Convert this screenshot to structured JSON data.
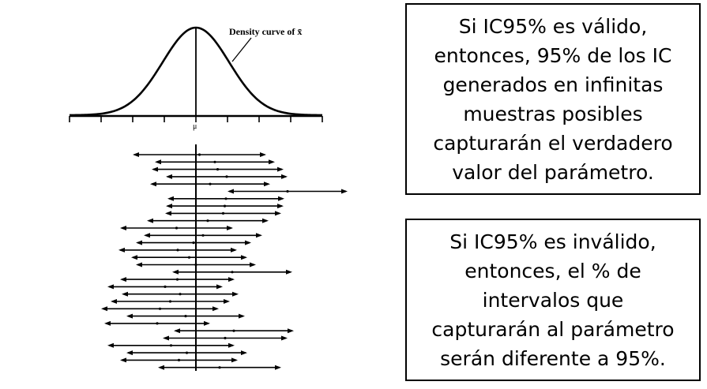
{
  "figure": {
    "curve_label": "Density curve of x̄",
    "axis_label": "μ",
    "intervals": [
      [
        168,
        337
      ],
      [
        196,
        348
      ],
      [
        192,
        359
      ],
      [
        210,
        364
      ],
      [
        190,
        342
      ],
      [
        288,
        440
      ],
      [
        212,
        360
      ],
      [
        210,
        359
      ],
      [
        209,
        356
      ],
      [
        186,
        340
      ],
      [
        152,
        295
      ],
      [
        182,
        332
      ],
      [
        172,
        318
      ],
      [
        150,
        300
      ],
      [
        166,
        313
      ],
      [
        172,
        324
      ],
      [
        218,
        370
      ],
      [
        152,
        297
      ],
      [
        136,
        282
      ],
      [
        154,
        302
      ],
      [
        140,
        291
      ],
      [
        128,
        277
      ],
      [
        160,
        310
      ],
      [
        132,
        266
      ],
      [
        220,
        372
      ],
      [
        206,
        364
      ],
      [
        136,
        297
      ],
      [
        160,
        313
      ],
      [
        152,
        301
      ],
      [
        200,
        356
      ]
    ]
  },
  "boxes": {
    "valid_text": "Si IC95% es válido,\nentonces, 95% de los IC\ngenerados en infinitas\nmuestras posibles\ncapturarán el verdadero\nvalor del parámetro.",
    "invalid_text": "Si IC95% es inválido,\nentonces, el % de\nintervalos que\ncapturarán al parámetro\nserán diferente a 95%."
  }
}
